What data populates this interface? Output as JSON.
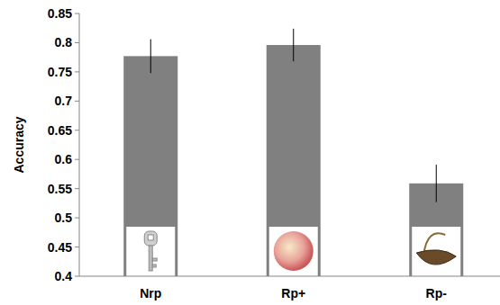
{
  "chart_data": {
    "type": "bar",
    "y_label": "Accuracy",
    "categories": [
      "Nrp",
      "Rp+",
      "Rp-"
    ],
    "values": [
      0.777,
      0.796,
      0.559
    ],
    "errors": [
      0.029,
      0.028,
      0.032
    ],
    "color": "#808080",
    "ylim": [
      0.4,
      0.85
    ],
    "yticks": [
      0.4,
      0.45,
      0.5,
      0.55,
      0.6,
      0.65,
      0.7,
      0.75,
      0.8,
      0.85
    ],
    "grid": false
  }
}
